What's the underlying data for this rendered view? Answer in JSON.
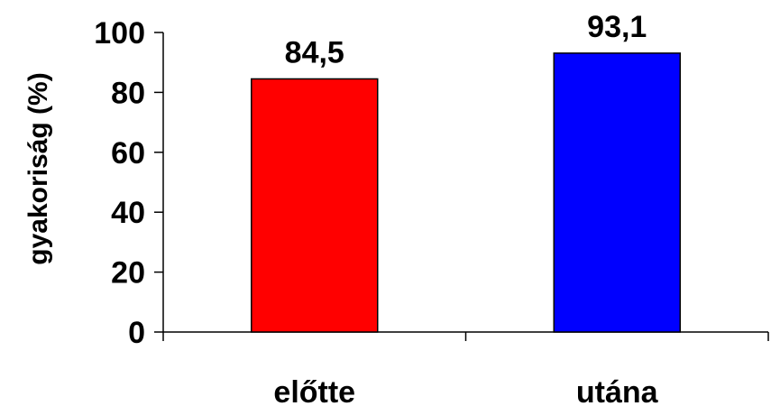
{
  "chart_data": {
    "type": "bar",
    "categories": [
      "előtte",
      "utána"
    ],
    "values": [
      84.5,
      93.1
    ],
    "value_labels": [
      "84,5",
      "93,1"
    ],
    "bar_colors": [
      "#ff0000",
      "#0000ff"
    ],
    "ylabel": "gyakoriság (%)",
    "xlabel": "",
    "ylim": [
      0,
      100
    ],
    "yticks": [
      0,
      20,
      40,
      60,
      80,
      100
    ],
    "grid": false,
    "legend": "none"
  }
}
